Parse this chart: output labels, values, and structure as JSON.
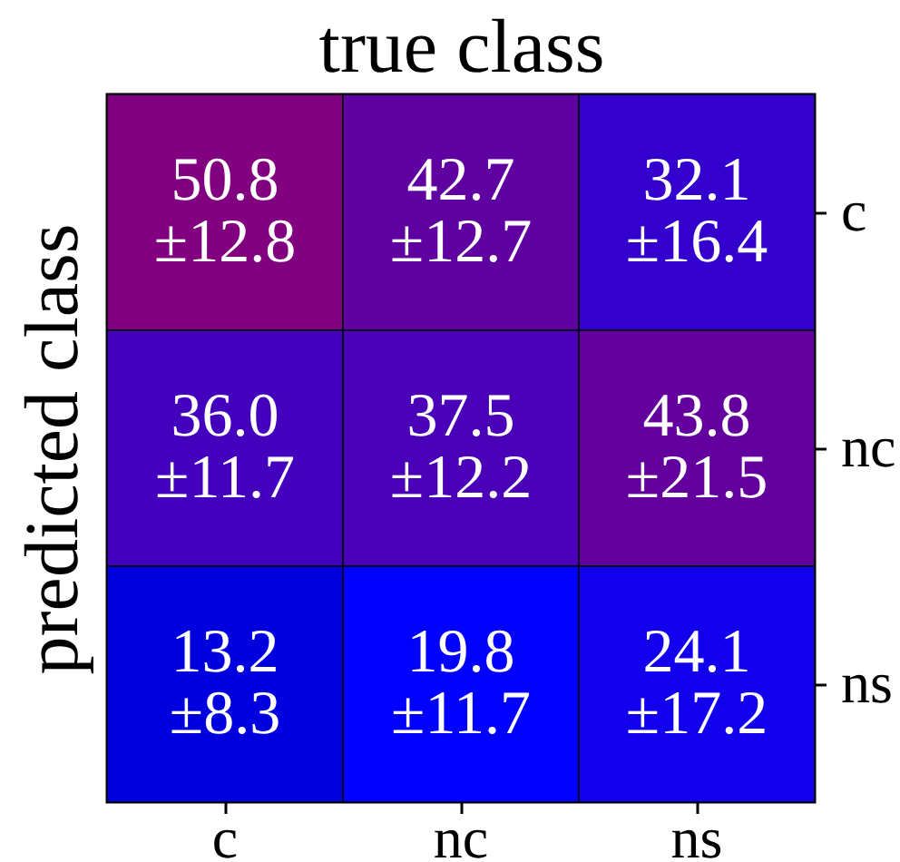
{
  "chart_data": {
    "type": "heatmap",
    "xlabel": "true class",
    "ylabel": "predicted class",
    "categories": [
      "c",
      "nc",
      "ns"
    ],
    "y_categories": [
      "c",
      "nc",
      "ns"
    ],
    "cells": [
      [
        50.8,
        42.7,
        32.1
      ],
      [
        36.0,
        37.5,
        43.8
      ],
      [
        13.2,
        19.8,
        24.1
      ]
    ],
    "cell_labels": [
      [
        "50.8",
        "42.7",
        "32.1"
      ],
      [
        "36.0",
        "37.5",
        "43.8"
      ],
      [
        "13.2",
        "19.8",
        "24.1"
      ]
    ],
    "annotations": [
      "±12.8",
      "±12.7",
      "±16.4",
      "±11.7",
      "±12.2",
      "±21.5",
      "±8.3",
      "±11.7",
      "±17.2"
    ],
    "grid": false
  }
}
